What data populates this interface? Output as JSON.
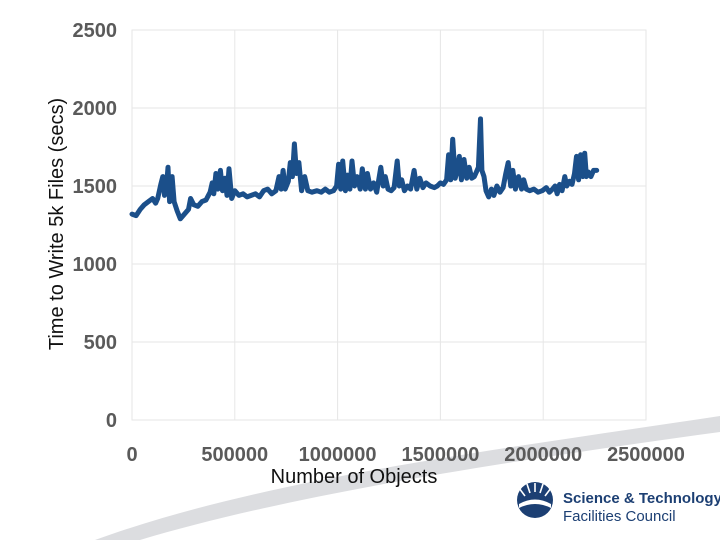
{
  "chart_data": {
    "type": "line",
    "title": "",
    "xlabel": "Number of Objects",
    "ylabel": "Time to Write 5k Files (secs)",
    "xlim": [
      0,
      2500000
    ],
    "ylim": [
      0,
      2500
    ],
    "x_ticks": [
      "0",
      "500000",
      "1000000",
      "1500000",
      "2000000",
      "2500000"
    ],
    "y_ticks": [
      "0",
      "500",
      "1000",
      "1500",
      "2000",
      "2500"
    ],
    "grid": "horizontal and vertical",
    "legend": "none",
    "series": [
      {
        "color": "#1b4f8a",
        "points": [
          [
            0,
            1320
          ],
          [
            20000,
            1310
          ],
          [
            40000,
            1350
          ],
          [
            60000,
            1380
          ],
          [
            80000,
            1400
          ],
          [
            100000,
            1420
          ],
          [
            115000,
            1390
          ],
          [
            125000,
            1420
          ],
          [
            140000,
            1510
          ],
          [
            150000,
            1560
          ],
          [
            158000,
            1440
          ],
          [
            168000,
            1500
          ],
          [
            175000,
            1620
          ],
          [
            183000,
            1400
          ],
          [
            195000,
            1560
          ],
          [
            205000,
            1400
          ],
          [
            220000,
            1340
          ],
          [
            235000,
            1290
          ],
          [
            255000,
            1320
          ],
          [
            275000,
            1350
          ],
          [
            285000,
            1420
          ],
          [
            300000,
            1380
          ],
          [
            320000,
            1370
          ],
          [
            340000,
            1400
          ],
          [
            360000,
            1410
          ],
          [
            380000,
            1460
          ],
          [
            390000,
            1520
          ],
          [
            398000,
            1450
          ],
          [
            408000,
            1580
          ],
          [
            418000,
            1480
          ],
          [
            430000,
            1600
          ],
          [
            440000,
            1470
          ],
          [
            452000,
            1550
          ],
          [
            462000,
            1440
          ],
          [
            472000,
            1610
          ],
          [
            485000,
            1420
          ],
          [
            500000,
            1470
          ],
          [
            520000,
            1440
          ],
          [
            540000,
            1450
          ],
          [
            560000,
            1430
          ],
          [
            580000,
            1440
          ],
          [
            600000,
            1450
          ],
          [
            620000,
            1430
          ],
          [
            640000,
            1470
          ],
          [
            660000,
            1480
          ],
          [
            680000,
            1450
          ],
          [
            700000,
            1470
          ],
          [
            715000,
            1560
          ],
          [
            725000,
            1480
          ],
          [
            735000,
            1600
          ],
          [
            745000,
            1480
          ],
          [
            760000,
            1530
          ],
          [
            770000,
            1650
          ],
          [
            780000,
            1560
          ],
          [
            790000,
            1770
          ],
          [
            800000,
            1580
          ],
          [
            812000,
            1650
          ],
          [
            825000,
            1470
          ],
          [
            840000,
            1560
          ],
          [
            855000,
            1470
          ],
          [
            875000,
            1460
          ],
          [
            900000,
            1470
          ],
          [
            920000,
            1460
          ],
          [
            940000,
            1480
          ],
          [
            960000,
            1460
          ],
          [
            980000,
            1470
          ],
          [
            995000,
            1500
          ],
          [
            1005000,
            1640
          ],
          [
            1015000,
            1480
          ],
          [
            1025000,
            1660
          ],
          [
            1038000,
            1470
          ],
          [
            1048000,
            1570
          ],
          [
            1060000,
            1480
          ],
          [
            1070000,
            1660
          ],
          [
            1082000,
            1500
          ],
          [
            1095000,
            1560
          ],
          [
            1110000,
            1480
          ],
          [
            1120000,
            1610
          ],
          [
            1135000,
            1480
          ],
          [
            1145000,
            1580
          ],
          [
            1160000,
            1480
          ],
          [
            1175000,
            1520
          ],
          [
            1190000,
            1460
          ],
          [
            1210000,
            1620
          ],
          [
            1222000,
            1500
          ],
          [
            1232000,
            1560
          ],
          [
            1245000,
            1480
          ],
          [
            1260000,
            1470
          ],
          [
            1275000,
            1490
          ],
          [
            1290000,
            1660
          ],
          [
            1300000,
            1500
          ],
          [
            1312000,
            1540
          ],
          [
            1325000,
            1470
          ],
          [
            1340000,
            1500
          ],
          [
            1355000,
            1480
          ],
          [
            1372000,
            1600
          ],
          [
            1385000,
            1480
          ],
          [
            1400000,
            1550
          ],
          [
            1415000,
            1490
          ],
          [
            1430000,
            1520
          ],
          [
            1450000,
            1500
          ],
          [
            1470000,
            1490
          ],
          [
            1485000,
            1500
          ],
          [
            1500000,
            1520
          ],
          [
            1515000,
            1510
          ],
          [
            1530000,
            1540
          ],
          [
            1540000,
            1700
          ],
          [
            1550000,
            1540
          ],
          [
            1560000,
            1800
          ],
          [
            1572000,
            1550
          ],
          [
            1582000,
            1600
          ],
          [
            1592000,
            1690
          ],
          [
            1602000,
            1540
          ],
          [
            1615000,
            1670
          ],
          [
            1628000,
            1550
          ],
          [
            1640000,
            1620
          ],
          [
            1652000,
            1550
          ],
          [
            1665000,
            1560
          ],
          [
            1675000,
            1590
          ],
          [
            1685000,
            1620
          ],
          [
            1695000,
            1930
          ],
          [
            1702000,
            1600
          ],
          [
            1712000,
            1560
          ],
          [
            1722000,
            1470
          ],
          [
            1735000,
            1430
          ],
          [
            1748000,
            1480
          ],
          [
            1760000,
            1440
          ],
          [
            1775000,
            1500
          ],
          [
            1790000,
            1460
          ],
          [
            1805000,
            1490
          ],
          [
            1818000,
            1580
          ],
          [
            1830000,
            1650
          ],
          [
            1842000,
            1500
          ],
          [
            1852000,
            1600
          ],
          [
            1865000,
            1480
          ],
          [
            1880000,
            1560
          ],
          [
            1895000,
            1480
          ],
          [
            1905000,
            1540
          ],
          [
            1918000,
            1480
          ],
          [
            1935000,
            1470
          ],
          [
            1955000,
            1480
          ],
          [
            1975000,
            1460
          ],
          [
            1995000,
            1470
          ],
          [
            2015000,
            1490
          ],
          [
            2030000,
            1460
          ],
          [
            2045000,
            1480
          ],
          [
            2058000,
            1500
          ],
          [
            2068000,
            1450
          ],
          [
            2080000,
            1510
          ],
          [
            2092000,
            1470
          ],
          [
            2105000,
            1560
          ],
          [
            2115000,
            1500
          ],
          [
            2128000,
            1530
          ],
          [
            2140000,
            1510
          ],
          [
            2152000,
            1580
          ],
          [
            2162000,
            1690
          ],
          [
            2172000,
            1540
          ],
          [
            2182000,
            1700
          ],
          [
            2192000,
            1560
          ],
          [
            2202000,
            1710
          ],
          [
            2210000,
            1560
          ],
          [
            2220000,
            1590
          ],
          [
            2232000,
            1560
          ],
          [
            2245000,
            1600
          ],
          [
            2260000,
            1600
          ]
        ]
      }
    ]
  },
  "branding": {
    "logo_line1": "Science & Technology",
    "logo_line2": "Facilities Council"
  }
}
